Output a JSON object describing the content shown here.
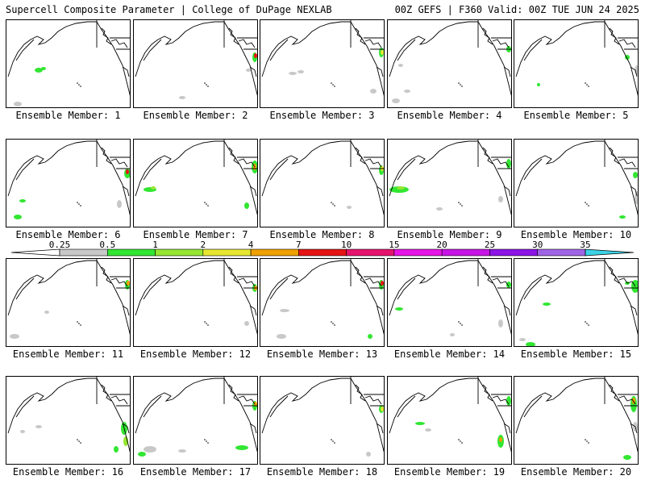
{
  "header": {
    "left": "Supercell Composite Parameter | College of DuPage NEXLAB",
    "right": "00Z GEFS | F360 Valid: 00Z TUE JUN 24 2025"
  },
  "label_prefix": "Ensemble Member: ",
  "members": [
    1,
    2,
    3,
    4,
    5,
    6,
    7,
    8,
    9,
    10,
    11,
    12,
    13,
    14,
    15,
    16,
    17,
    18,
    19,
    20
  ],
  "colorbar": {
    "tick_labels": [
      "0.25",
      "0.5",
      "1",
      "2",
      "4",
      "7",
      "10",
      "15",
      "20",
      "25",
      "30",
      "35"
    ],
    "colors": [
      "#c8c8c8",
      "#32e632",
      "#96e632",
      "#e6e632",
      "#f0a000",
      "#e61414",
      "#e6146e",
      "#e614e6",
      "#c814e6",
      "#8c14e6",
      "#a064e6",
      "#3cd2e6"
    ]
  },
  "palette": {
    "light_gray": "#c8c8c8",
    "green": "#32e632",
    "lime": "#96e632",
    "yellow": "#e6e632",
    "orange": "#f0a000",
    "red": "#e61414"
  }
}
